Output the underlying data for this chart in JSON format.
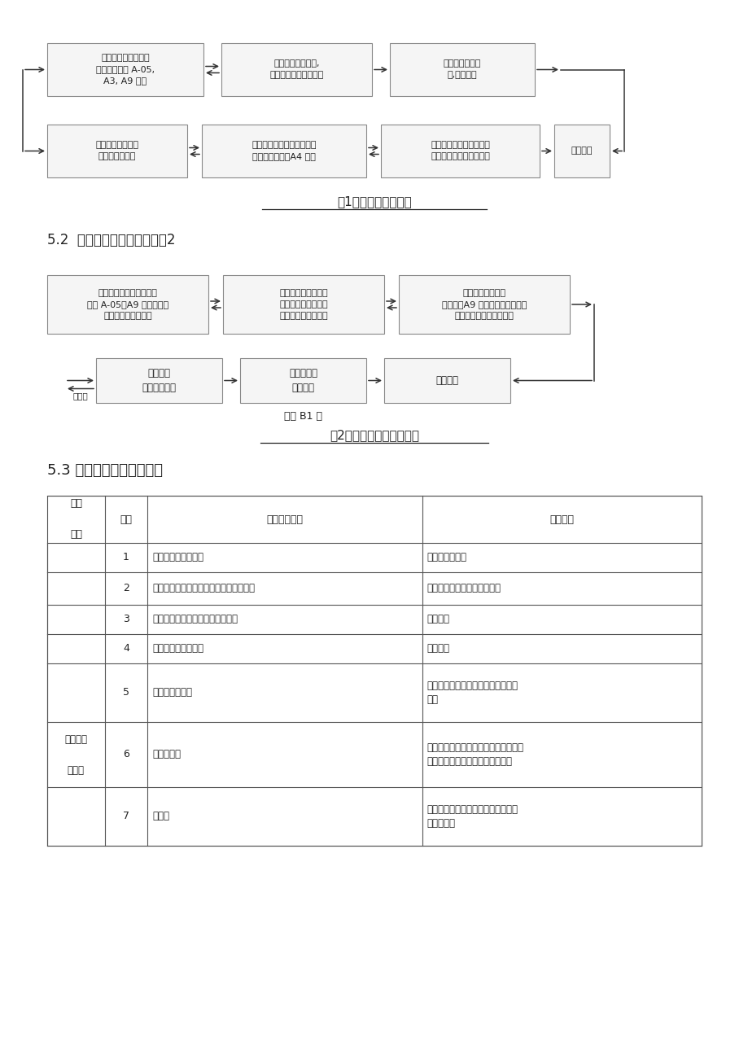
{
  "page_bg": "#ffffff",
  "text_color": "#222222",
  "box_fill": "#f5f5f5",
  "box_border": "#888888",
  "arrow_color": "#333333",
  "line_color": "#333333",
  "table_line_color": "#555555",
  "fig1_title": "图1、监理工作流程图",
  "fig1_row1": [
    "施工单位施工准备，\n报审表单（监 A-05,\nA3, A9 表）",
    "监理检查施工准备,\n审签报审表，通报业主",
    "施工单位实施施\n工,质量自检"
  ],
  "fig1_row2": [
    "监理平行检查，隐\n蔽部位旁站检查",
    "施工完成，施工单位自检评\n定，工程报验（A4 表）",
    "监理现场检查，审查报验\n表，总监签认，通报业主",
    "验收通过"
  ],
  "sec2_label": "5.2  主要材料核定流程：见图2",
  "fig2_title": "图2、主要材料核定流程图",
  "fig2_row1": [
    "施工单位材料报审，报审\n（监 A-05、A9 表），提供\n质量证明资料和样品",
    "监理审核，征求业主\n意见，签回报审表，\n资料封存，样品封样",
    "施工单位采购进场\n报审表（A9 表），附数量清单、\n质量证明文件，自检结果"
  ],
  "fig2_row2": [
    "监理核验\n见证取样送检",
    "签认报审表\n通报业主",
    "投入使用"
  ],
  "fig2_buhege": "不合格",
  "fig2_sign": "签发 B1 表",
  "sec3_label": "5.3 质量控制要点及目标值",
  "table_header": [
    "工程\n\n内容",
    "序号",
    "质量控制要点",
    "控制手段"
  ],
  "table_col_ratios": [
    0.088,
    0.065,
    0.42,
    0.427
  ],
  "table_rows": [
    [
      "",
      "1",
      "桩位轴线、水准基点",
      "测量复核龙门板"
    ],
    [
      "",
      "2",
      "原材料（钢筋、水泥、砂、石、焊条等）",
      "检查出厂合格证、检测报告等"
    ],
    [
      "",
      "3",
      "班径、桩位、垂直度、扩大头尺寸",
      "尺量检查"
    ],
    [
      "",
      "4",
      "桩底岩层鉴定、清噎",
      "孔底检查"
    ],
    [
      "人工挖孔\n\n灌注桩",
      "5",
      "钢筋笼制作安装",
      "检测、尺量检查，核查焊接接头检测\n报告"
    ],
    [
      "",
      "6",
      "於拌制灌注",
      "核对龄配合比（开盘鉴定报告）及计量\n实测坍落度、检查试块制作、旁站"
    ],
    [
      "",
      "7",
      "桩身碎",
      "动测、钻孔取芯及静载试验，检查试\n块检测报告"
    ]
  ],
  "table_row_heights": [
    36,
    40,
    36,
    36,
    72,
    80,
    72
  ]
}
